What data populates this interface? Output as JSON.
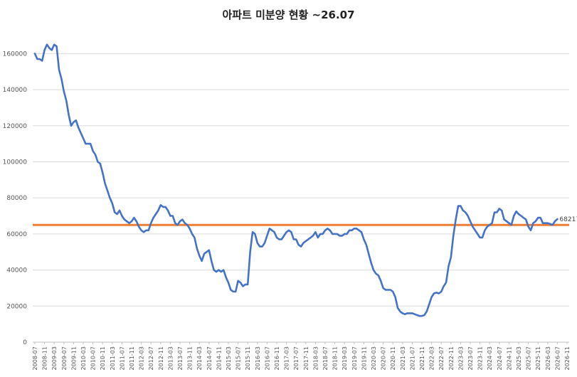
{
  "chart_data": {
    "type": "line",
    "title": "아파트 미분양 현황 ~26.07",
    "xlabel": "",
    "ylabel": "",
    "ylim": [
      0,
      170000
    ],
    "yticks": [
      0,
      20000,
      40000,
      60000,
      80000,
      100000,
      120000,
      140000,
      160000
    ],
    "ytick_labels": [
      "0",
      "20000",
      "40000",
      "60000",
      "80000",
      "100000",
      "120000",
      "140000",
      "160000"
    ],
    "x_tick_labels": [
      "2008-07",
      "2008-11",
      "2009-03",
      "2009-07",
      "2009-11",
      "2010-03",
      "2010-07",
      "2010-11",
      "2011-03",
      "2011-07",
      "2011-11",
      "2012-03",
      "2012-07",
      "2012-11",
      "2013-03",
      "2013-07",
      "2013-11",
      "2014-03",
      "2014-07",
      "2014-11",
      "2015-03",
      "2015-07",
      "2015-11",
      "2016-03",
      "2016-07",
      "2016-11",
      "2017-03",
      "2017-07",
      "2017-11",
      "2018-03",
      "2018-07",
      "2018-11",
      "2019-03",
      "2019-07",
      "2019-11",
      "2020-03",
      "2020-07",
      "2020-11",
      "2021-03",
      "2021-07",
      "2021-11",
      "2022-03",
      "2022-07",
      "2022-11",
      "2023-03",
      "2023-07",
      "2023-11",
      "2024-03",
      "2024-07",
      "2024-11",
      "2025-03",
      "2025-07",
      "2025-11",
      "2026-03",
      "2026-07",
      "2026-11"
    ],
    "grid": true,
    "legend": "none",
    "colors": {
      "series": "#4472c4",
      "reference": "#ed7d31",
      "grid": "#d9d9d9",
      "axis": "#bfbfbf"
    },
    "reference_line": {
      "value": 65000
    },
    "last_value_label": "68217",
    "series": [
      {
        "values": [
          160000,
          157000,
          157000,
          156000,
          162000,
          165000,
          163000,
          162000,
          165000,
          164000,
          151000,
          146000,
          139000,
          134000,
          126000,
          120000,
          122000,
          123000,
          119000,
          116000,
          113000,
          110000,
          110000,
          110000,
          106000,
          104000,
          100000,
          99000,
          94000,
          88000,
          84000,
          80000,
          77000,
          72000,
          71000,
          73000,
          70000,
          68000,
          67000,
          66000,
          67000,
          69000,
          67000,
          64000,
          62000,
          61000,
          62000,
          62000,
          66000,
          69000,
          71000,
          73000,
          76000,
          75000,
          75000,
          73000,
          70000,
          70000,
          66000,
          65000,
          67000,
          68000,
          66000,
          65000,
          63000,
          60000,
          58000,
          52000,
          48000,
          45000,
          49000,
          50000,
          51000,
          45000,
          40000,
          39000,
          40000,
          39000,
          40000,
          36000,
          33000,
          29000,
          28000,
          28000,
          34000,
          33000,
          31000,
          32000,
          32000,
          50000,
          61000,
          60000,
          55000,
          53000,
          53000,
          55000,
          59000,
          63000,
          62000,
          61000,
          58000,
          57000,
          57000,
          59000,
          61000,
          62000,
          61000,
          57000,
          57000,
          54000,
          53000,
          55000,
          56000,
          57000,
          58000,
          59000,
          61000,
          58000,
          60000,
          60000,
          62000,
          63000,
          62000,
          60000,
          60000,
          60000,
          59000,
          59000,
          60000,
          60000,
          62000,
          62000,
          63000,
          63000,
          62000,
          61000,
          57000,
          54000,
          49000,
          44000,
          40000,
          38000,
          37000,
          34000,
          30000,
          29000,
          29000,
          29000,
          28000,
          25000,
          19000,
          17000,
          16000,
          15500,
          16000,
          16000,
          16000,
          15500,
          15000,
          14500,
          14500,
          15000,
          17000,
          21000,
          25000,
          27000,
          27500,
          27000,
          28000,
          31000,
          33000,
          42000,
          47000,
          59000,
          68000,
          75500,
          75500,
          73000,
          72000,
          70000,
          67000,
          64000,
          62000,
          60000,
          58000,
          58000,
          62000,
          64000,
          65000,
          66000,
          72000,
          72000,
          74000,
          73000,
          68000,
          67000,
          66000,
          65000,
          70000,
          72500,
          71000,
          70000,
          69000,
          68000,
          64000,
          62000,
          66000,
          67000,
          69000,
          69000,
          66000,
          66000,
          66000,
          65500,
          65000,
          67000,
          68217
        ]
      }
    ]
  }
}
